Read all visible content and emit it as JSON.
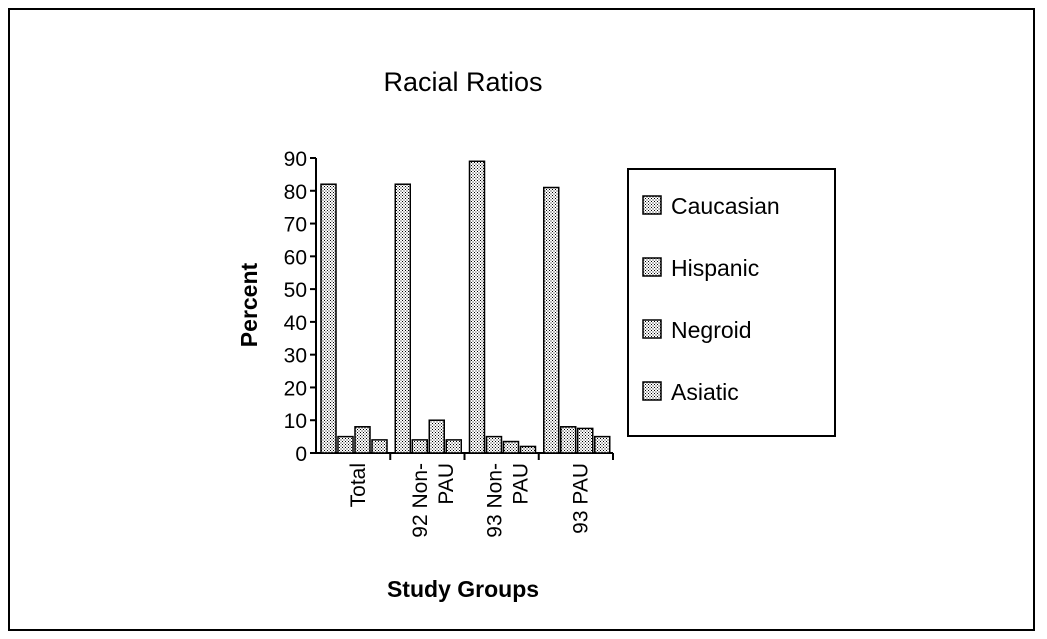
{
  "chart_data": {
    "type": "bar",
    "title": "Racial Ratios",
    "xlabel": "Study Groups",
    "ylabel": "Percent",
    "ylim": [
      0,
      90
    ],
    "yticks": [
      0,
      10,
      20,
      30,
      40,
      50,
      60,
      70,
      80,
      90
    ],
    "grid": false,
    "legend_position": "right",
    "categories": [
      [
        "Total"
      ],
      [
        "92 Non-",
        "PAU"
      ],
      [
        "93 Non-",
        "PAU"
      ],
      [
        "93 PAU"
      ]
    ],
    "series": [
      {
        "name": "Caucasian",
        "values": [
          82,
          82,
          89,
          81
        ]
      },
      {
        "name": "Hispanic",
        "values": [
          5,
          4,
          5,
          8
        ]
      },
      {
        "name": "Negroid",
        "values": [
          8,
          10,
          3.5,
          7.5
        ]
      },
      {
        "name": "Asiatic",
        "values": [
          4,
          4,
          2,
          5
        ]
      }
    ]
  }
}
